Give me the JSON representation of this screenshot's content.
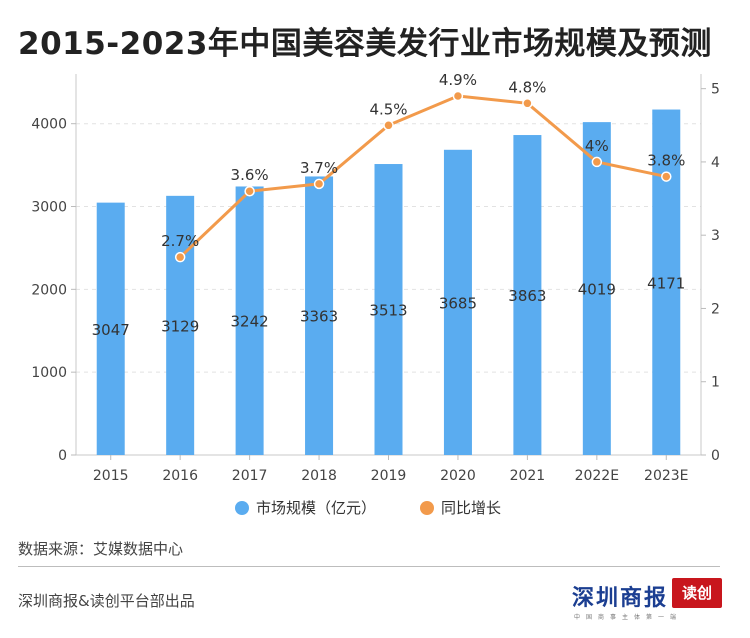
{
  "chart_data": {
    "type": "bar",
    "title": "2015-2023年中国美容美发行业市场规模及预测",
    "categories": [
      "2015",
      "2016",
      "2017",
      "2018",
      "2019",
      "2020",
      "2021",
      "2022E",
      "2023E"
    ],
    "series": [
      {
        "name": "市场规模（亿元）",
        "type": "bar",
        "axis": "left",
        "color": "#5aacf0",
        "values": [
          3047,
          3129,
          3242,
          3363,
          3513,
          3685,
          3863,
          4019,
          4171
        ],
        "labels": [
          "3047",
          "3129",
          "3242",
          "3363",
          "3513",
          "3685",
          "3863",
          "4019",
          "4171"
        ]
      },
      {
        "name": "同比增长",
        "type": "line",
        "axis": "right",
        "color": "#f29a4b",
        "values": [
          null,
          2.7,
          3.6,
          3.7,
          4.5,
          4.9,
          4.8,
          4.0,
          3.8
        ],
        "labels": [
          "",
          "2.7%",
          "3.6%",
          "3.7%",
          "4.5%",
          "4.9%",
          "4.8%",
          "4%",
          "3.8%"
        ]
      }
    ],
    "y_left": {
      "ylim": [
        0,
        4600
      ],
      "ticks": [
        0,
        1000,
        2000,
        3000,
        4000
      ],
      "tick_labels": [
        "0",
        "1000",
        "2000",
        "3000",
        "4000"
      ]
    },
    "y_right": {
      "ylim": [
        0,
        5.2
      ],
      "ticks": [
        0,
        1,
        2,
        3,
        4,
        5
      ],
      "tick_labels": [
        "0",
        "1",
        "2",
        "3",
        "4",
        "5"
      ]
    },
    "legend": {
      "placement": "bottom-center",
      "entries": [
        "市场规模（亿元）",
        "同比增长"
      ]
    },
    "grid": true
  },
  "footer": {
    "source": "数据来源：艾媒数据中心",
    "publisher": "深圳商报&读创平台部出品",
    "brand_main": "深圳商报",
    "brand_tag": "读创",
    "brand_sub": "中国商事主体第一端"
  }
}
